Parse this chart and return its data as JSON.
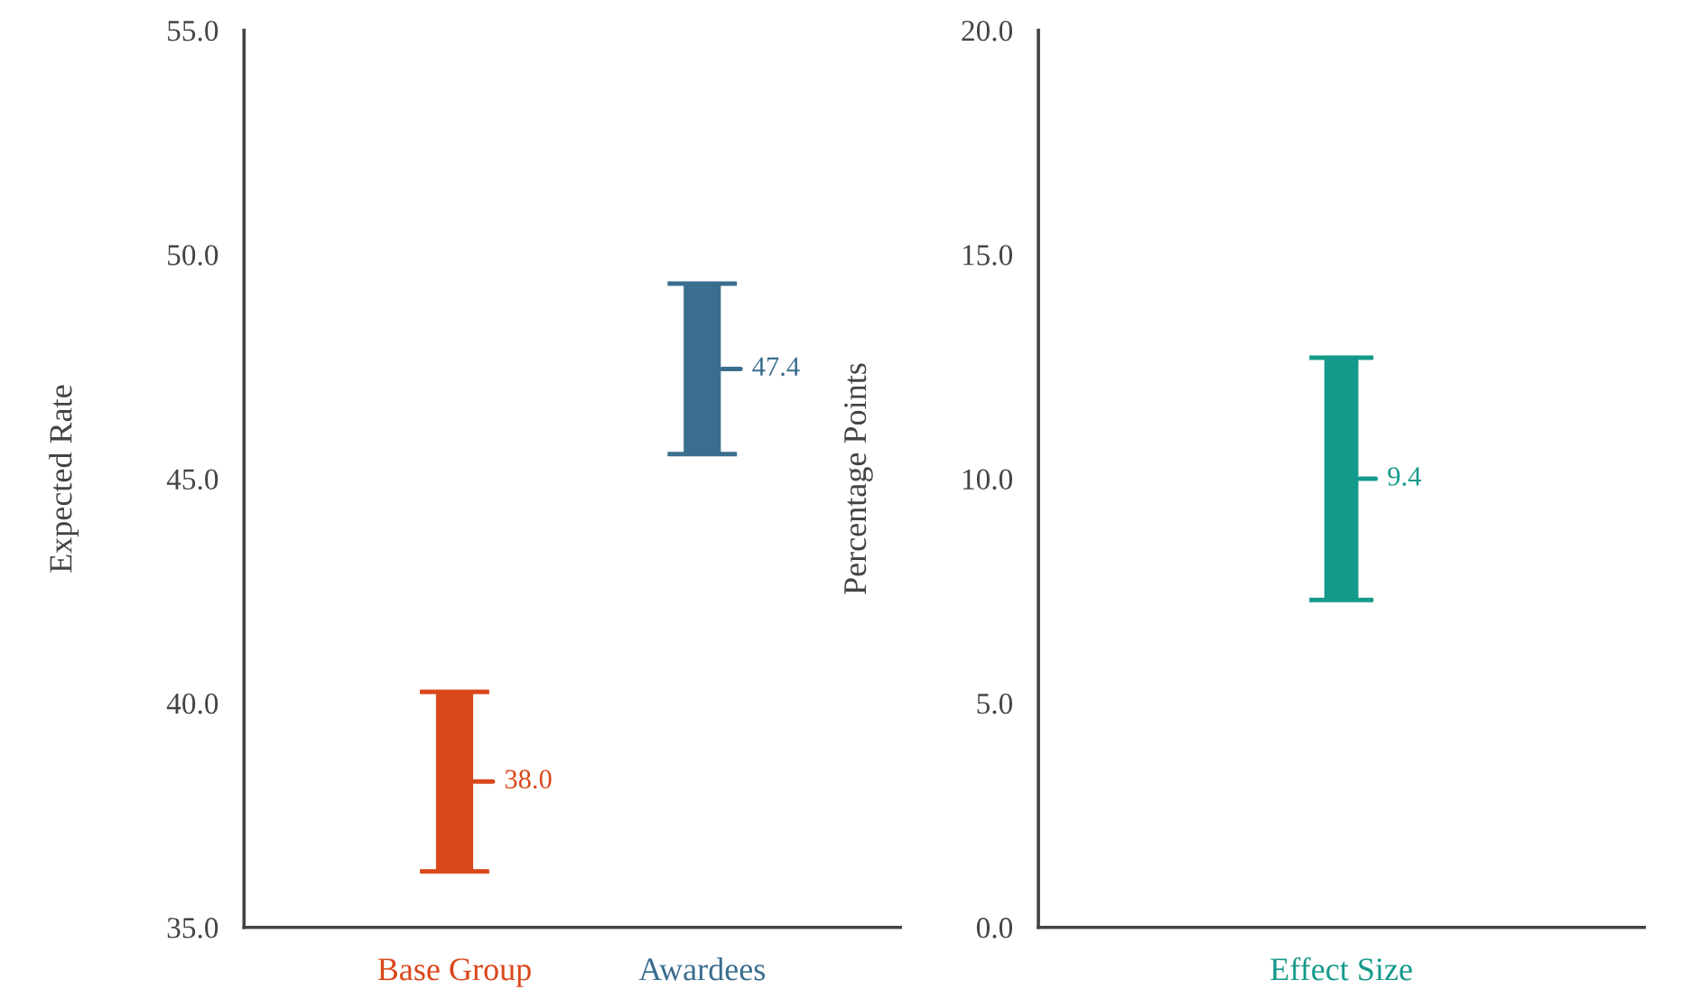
{
  "chart_data": [
    {
      "type": "bar",
      "ylabel": "Expected Rate",
      "categories": [
        "Base Group",
        "Awardees"
      ],
      "base": [
        36.25,
        45.55
      ],
      "values": [
        4.0,
        3.8
      ],
      "colors": [
        "#d9471a",
        "#3a6e8f"
      ],
      "ylim": [
        35,
        55
      ],
      "yticks": [
        {
          "value": 35,
          "label": "35.0"
        },
        {
          "value": 40,
          "label": "40.0"
        },
        {
          "value": 45,
          "label": "45.0"
        },
        {
          "value": 50,
          "label": "50.0"
        },
        {
          "value": 55,
          "label": "55.0"
        }
      ],
      "annotations": [
        "38.0",
        "47.4"
      ]
    },
    {
      "type": "bar",
      "ylabel": "Percentage Points",
      "categories": [
        "Effect Size"
      ],
      "base": [
        7.3
      ],
      "values": [
        5.4
      ],
      "colors": [
        "#149a8b"
      ],
      "ylim": [
        0,
        20
      ],
      "yticks": [
        {
          "value": 0,
          "label": "0.0"
        },
        {
          "value": 5,
          "label": "5.0"
        },
        {
          "value": 10,
          "label": "10.0"
        },
        {
          "value": 15,
          "label": "15.0"
        },
        {
          "value": 20,
          "label": "20.0"
        }
      ],
      "annotations": [
        "9.4"
      ]
    }
  ]
}
